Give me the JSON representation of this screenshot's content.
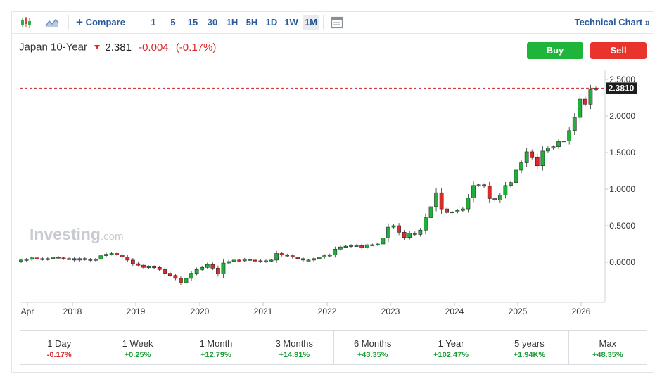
{
  "toolbar": {
    "compare_label": "Compare",
    "periods": [
      "1",
      "5",
      "15",
      "30",
      "1H",
      "5H",
      "1D",
      "1W",
      "1M"
    ],
    "active_period": "1M",
    "technical_chart_label": "Technical Chart »"
  },
  "header": {
    "symbol": "Japan 10-Year",
    "price": "2.381",
    "change": "-0.004",
    "change_pct": "(-0.17%)",
    "buy_label": "Buy",
    "sell_label": "Sell"
  },
  "watermark": "Investing.com",
  "colors": {
    "up": "#20b03a",
    "down": "#d92b2b",
    "accent": "#2a5a9c",
    "price_line": "#c62828"
  },
  "chart_data": {
    "type": "candlestick",
    "title": "",
    "xlabel": "",
    "ylabel": "",
    "ylim": [
      -0.55,
      2.55
    ],
    "y_ticks": [
      "2.5000",
      "2.0000",
      "1.5000",
      "1.0000",
      "0.5000",
      "0.0000"
    ],
    "y_tick_values": [
      2.5,
      2.0,
      1.5,
      1.0,
      0.5,
      0.0
    ],
    "x_ticks": [
      "Apr",
      "2018",
      "2019",
      "2020",
      "2021",
      "2022",
      "2023",
      "2024",
      "2025",
      "2026"
    ],
    "current_price_label": "2.3810",
    "current_price": 2.381,
    "closes": [
      0.03,
      0.04,
      0.06,
      0.05,
      0.04,
      0.05,
      0.07,
      0.06,
      0.05,
      0.05,
      0.03,
      0.05,
      0.04,
      0.03,
      0.04,
      0.09,
      0.11,
      0.12,
      0.1,
      0.07,
      0.03,
      -0.02,
      -0.04,
      -0.07,
      -0.06,
      -0.07,
      -0.1,
      -0.15,
      -0.18,
      -0.22,
      -0.28,
      -0.22,
      -0.15,
      -0.1,
      -0.07,
      -0.03,
      -0.08,
      -0.16,
      -0.01,
      0.01,
      0.03,
      0.02,
      0.04,
      0.03,
      0.02,
      0.01,
      0.02,
      0.03,
      0.12,
      0.1,
      0.09,
      0.07,
      0.05,
      0.03,
      0.03,
      0.05,
      0.07,
      0.09,
      0.1,
      0.18,
      0.21,
      0.22,
      0.23,
      0.23,
      0.2,
      0.24,
      0.24,
      0.25,
      0.33,
      0.48,
      0.5,
      0.41,
      0.34,
      0.4,
      0.38,
      0.44,
      0.61,
      0.76,
      0.95,
      0.73,
      0.68,
      0.69,
      0.71,
      0.73,
      0.88,
      1.05,
      1.06,
      1.04,
      0.87,
      0.85,
      0.92,
      1.05,
      1.09,
      1.26,
      1.36,
      1.51,
      1.44,
      1.32,
      1.52,
      1.56,
      1.58,
      1.65,
      1.66,
      1.8,
      1.98,
      2.23,
      2.16,
      2.36,
      2.381
    ]
  },
  "performance": [
    {
      "label": "1 Day",
      "value": "-0.17%",
      "dir": "neg"
    },
    {
      "label": "1 Week",
      "value": "+0.25%",
      "dir": "pos"
    },
    {
      "label": "1 Month",
      "value": "+12.79%",
      "dir": "pos"
    },
    {
      "label": "3 Months",
      "value": "+14.91%",
      "dir": "pos"
    },
    {
      "label": "6 Months",
      "value": "+43.35%",
      "dir": "pos"
    },
    {
      "label": "1 Year",
      "value": "+102.47%",
      "dir": "pos"
    },
    {
      "label": "5 years",
      "value": "+1.94K%",
      "dir": "pos"
    },
    {
      "label": "Max",
      "value": "+48.35%",
      "dir": "pos"
    }
  ]
}
